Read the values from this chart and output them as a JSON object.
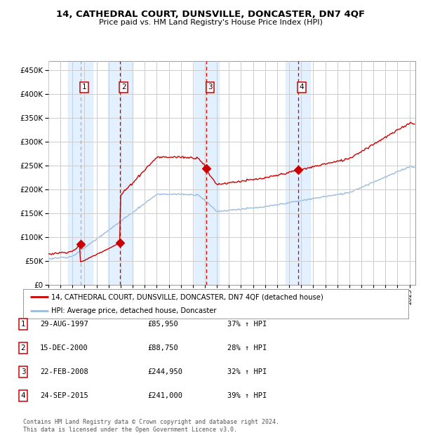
{
  "title": "14, CATHEDRAL COURT, DUNSVILLE, DONCASTER, DN7 4QF",
  "subtitle": "Price paid vs. HM Land Registry's House Price Index (HPI)",
  "sale_prices": [
    85950,
    88750,
    244950,
    241000
  ],
  "sale_labels": [
    "1",
    "2",
    "3",
    "4"
  ],
  "sale_info": [
    {
      "label": "1",
      "date": "29-AUG-1997",
      "price": "£85,950",
      "hpi": "37% ↑ HPI"
    },
    {
      "label": "2",
      "date": "15-DEC-2000",
      "price": "£88,750",
      "hpi": "28% ↑ HPI"
    },
    {
      "label": "3",
      "date": "22-FEB-2008",
      "price": "£244,950",
      "hpi": "32% ↑ HPI"
    },
    {
      "label": "4",
      "date": "24-SEP-2015",
      "price": "£241,000",
      "hpi": "39% ↑ HPI"
    }
  ],
  "sale_year_nums": [
    1997.66,
    2000.96,
    2008.14,
    2015.73
  ],
  "property_line_color": "#cc0000",
  "hpi_line_color": "#99bbdd",
  "background_color": "#ffffff",
  "grid_color": "#cccccc",
  "shaded_region_color": "#ddeeff",
  "ylim": [
    0,
    470000
  ],
  "yticks": [
    0,
    50000,
    100000,
    150000,
    200000,
    250000,
    300000,
    350000,
    400000,
    450000
  ],
  "footer": "Contains HM Land Registry data © Crown copyright and database right 2024.\nThis data is licensed under the Open Government Licence v3.0.",
  "legend_property": "14, CATHEDRAL COURT, DUNSVILLE, DONCASTER, DN7 4QF (detached house)",
  "legend_hpi": "HPI: Average price, detached house, Doncaster",
  "xlim_left": 1995.0,
  "xlim_right": 2025.5
}
